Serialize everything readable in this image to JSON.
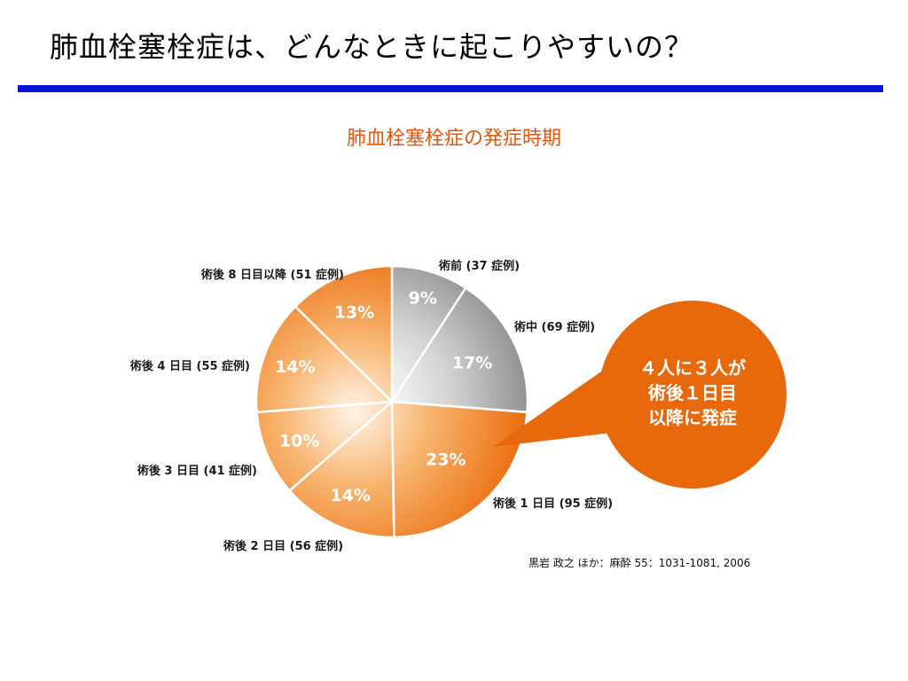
{
  "slide": {
    "title": "肺血栓塞栓症は、どんなときに起こりやすいの？",
    "accent_color": "#0a14d8"
  },
  "chart_data": {
    "type": "pie",
    "title": "肺血栓塞栓症の発症時期",
    "start_angle_deg": 0,
    "direction": "clockwise",
    "slices": [
      {
        "label": "術前 (37 症例)",
        "cases": 37,
        "percent": 9,
        "percent_label": "9%",
        "color": "#9a9a9a"
      },
      {
        "label": "術中 (69 症例)",
        "cases": 69,
        "percent": 17,
        "percent_label": "17%",
        "color": "#a3a3a3"
      },
      {
        "label": "術後 1 日目 (95 症例)",
        "cases": 95,
        "percent": 23,
        "percent_label": "23%",
        "color": "#ee7a1e"
      },
      {
        "label": "術後 2 日目 (56 症例)",
        "cases": 56,
        "percent": 14,
        "percent_label": "14%",
        "color": "#ee7a1e"
      },
      {
        "label": "術後 3 日目 (41 症例)",
        "cases": 41,
        "percent": 10,
        "percent_label": "10%",
        "color": "#ee7a1e"
      },
      {
        "label": "術後 4 日目 (55 症例)",
        "cases": 55,
        "percent": 14,
        "percent_label": "14%",
        "color": "#ee7a1e"
      },
      {
        "label": "術後 8 日目以降 (51 症例)",
        "cases": 51,
        "percent": 13,
        "percent_label": "13%",
        "color": "#ee7a1e"
      }
    ],
    "callout": {
      "lines": [
        "４人に３人が",
        "術後１日目",
        "以降に発症"
      ],
      "color": "#e8690c"
    }
  },
  "source": "黒岩 政之 ほか：麻酔 55：1031-1081, 2006"
}
